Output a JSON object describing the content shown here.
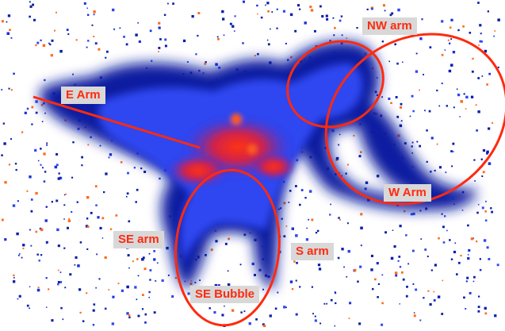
{
  "labels": {
    "nw_arm": "NW arm",
    "e_arm": "E Arm",
    "w_arm": "W Arm",
    "se_arm": "SE arm",
    "s_arm": "S arm",
    "se_bubble": "SE Bubble"
  },
  "colors": {
    "background": "#ffffff",
    "emission_low": "#0a1ea8",
    "emission_mid": "#2f47f0",
    "emission_high": "#ff3311",
    "annotation_red": "#ff2a0f",
    "label_box": "#d8d8d8"
  }
}
